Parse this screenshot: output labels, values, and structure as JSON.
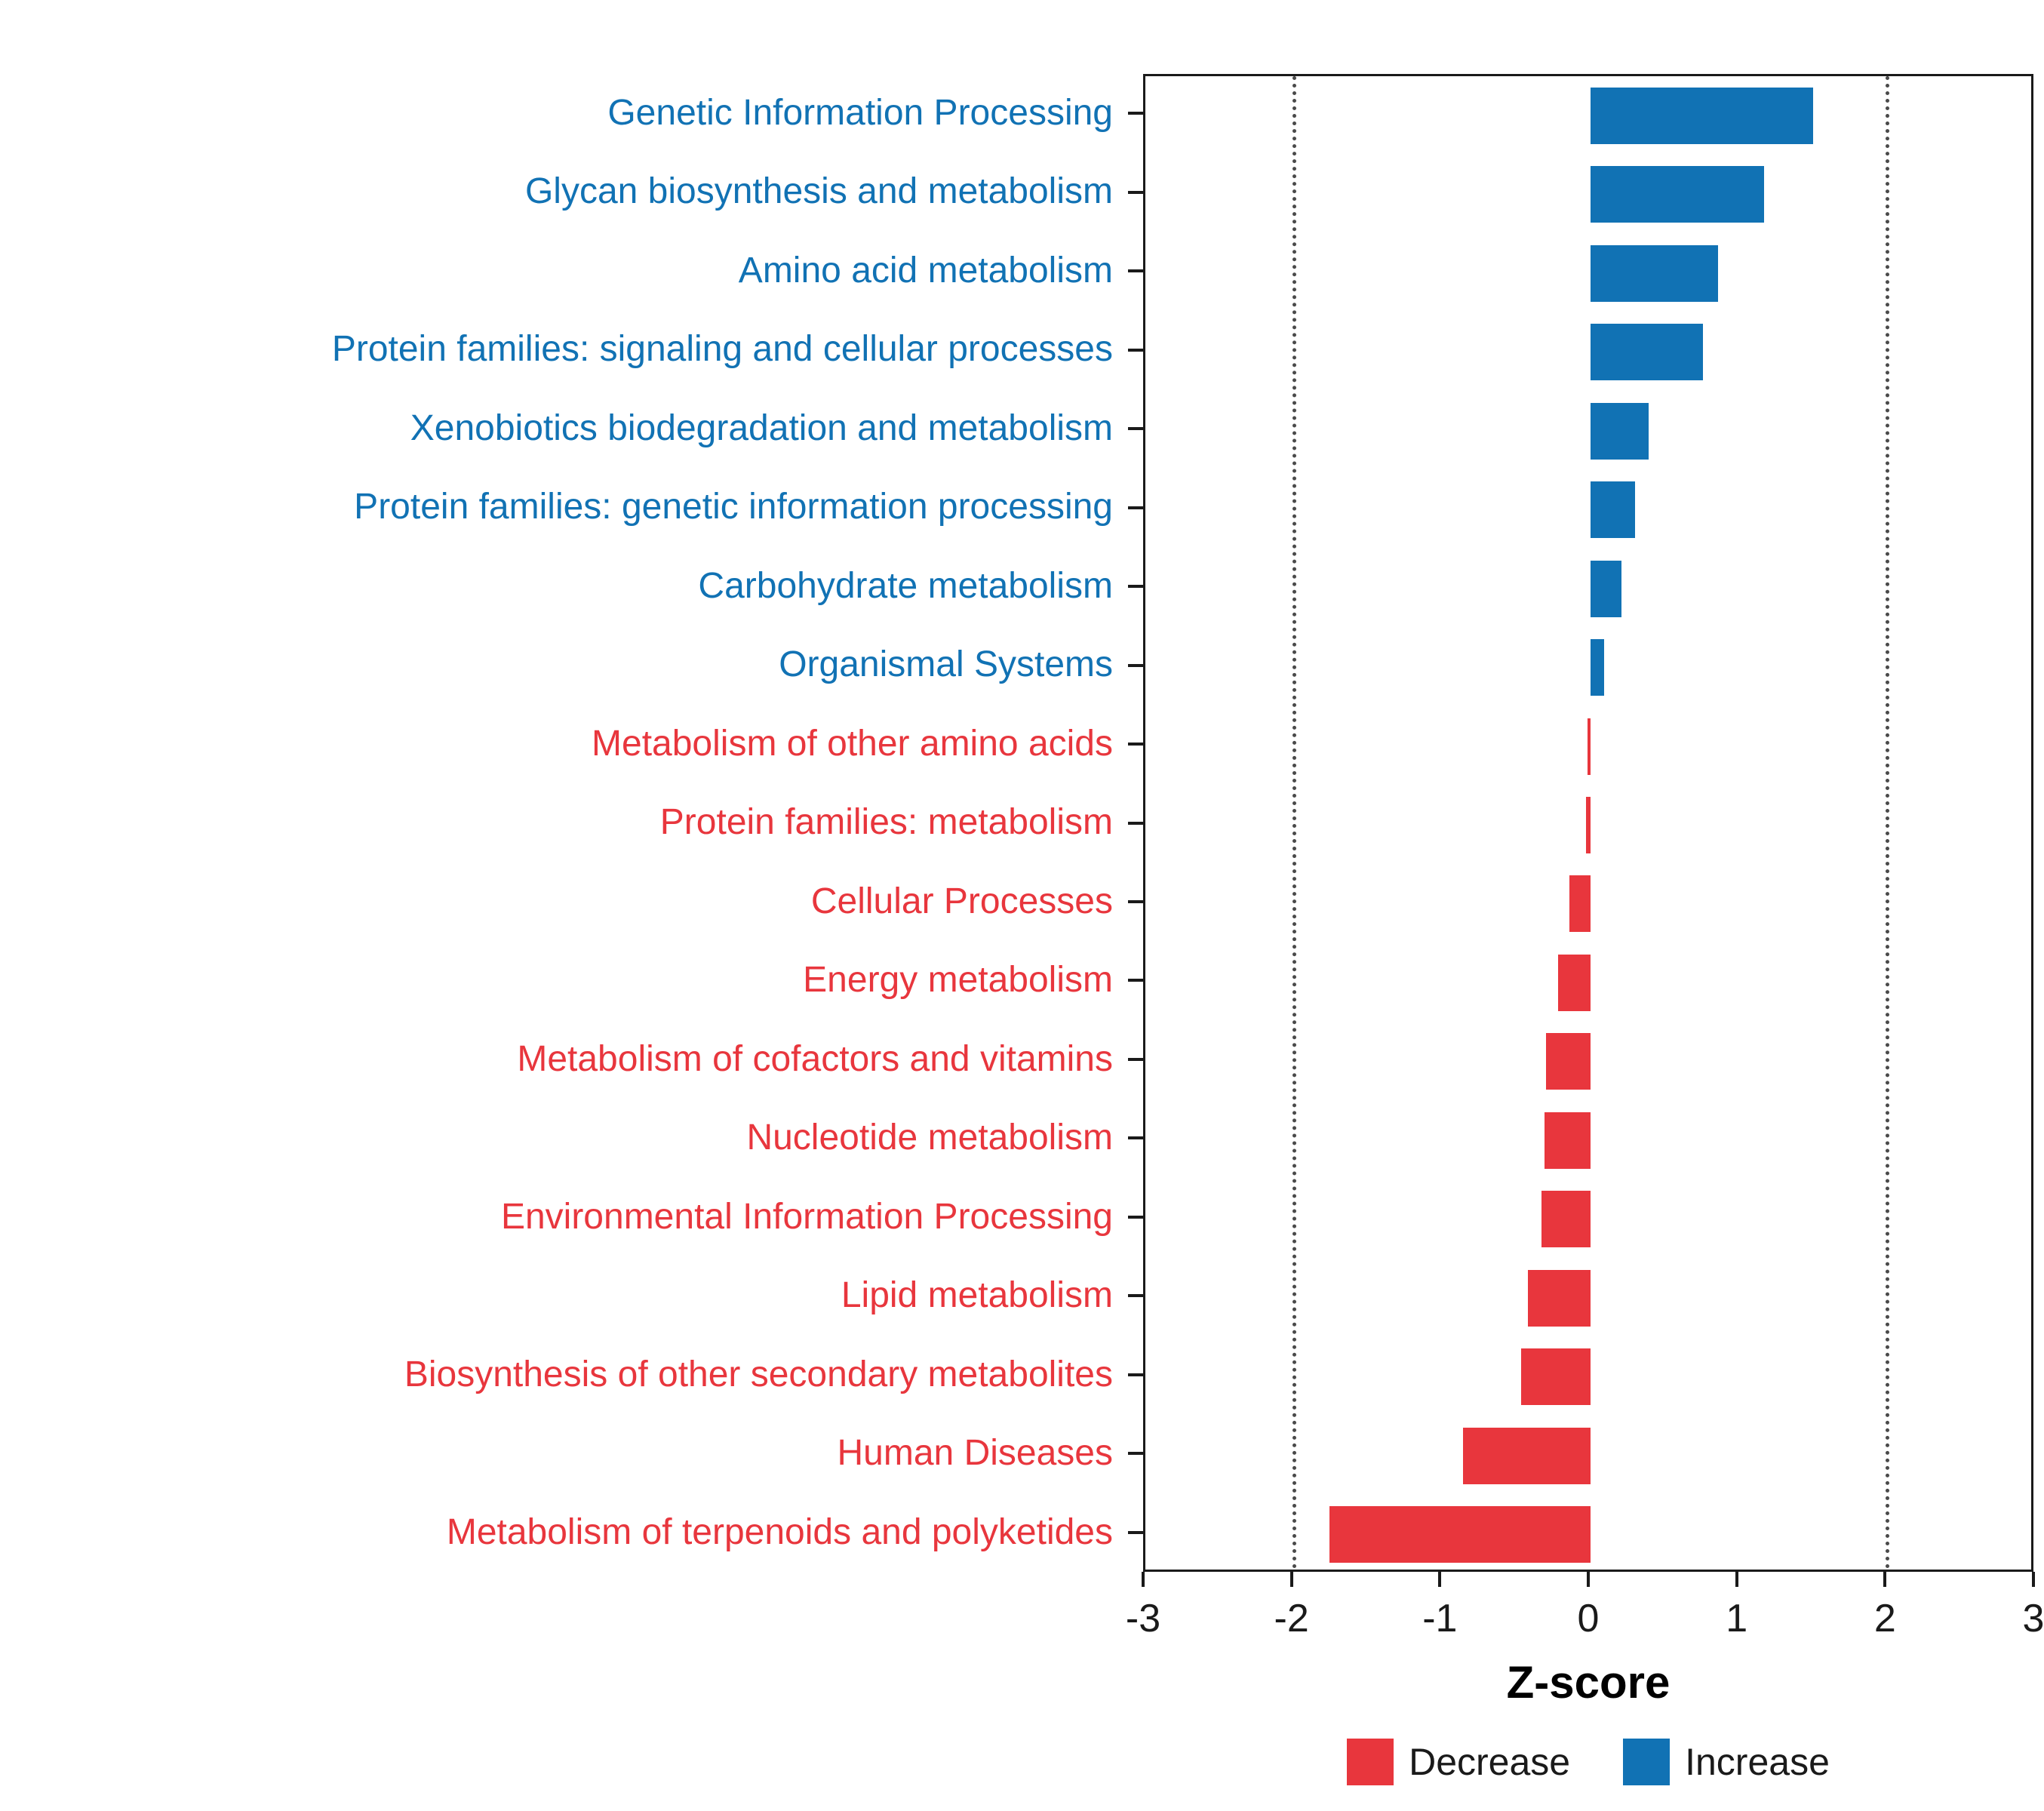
{
  "chart_data": {
    "type": "bar",
    "orientation": "horizontal",
    "title": "",
    "xlabel": "Z-score",
    "ylabel": "",
    "xlim": [
      -3,
      3
    ],
    "x_ticks": [
      -3,
      -2,
      -1,
      0,
      1,
      2,
      3
    ],
    "dotted_gridlines_at": [
      -2,
      2
    ],
    "grid": "dotted-verticals-only",
    "legend_position": "bottom-center",
    "categories": [
      "Genetic Information Processing",
      "Glycan biosynthesis and metabolism",
      "Amino acid metabolism",
      "Protein families: signaling and cellular processes",
      "Xenobiotics biodegradation and metabolism",
      "Protein families: genetic information processing",
      "Carbohydrate metabolism",
      "Organismal Systems",
      "Metabolism of other amino acids",
      "Protein families: metabolism",
      "Cellular Processes",
      "Energy metabolism",
      "Metabolism of cofactors and vitamins",
      "Nucleotide metabolism",
      "Environmental Information Processing",
      "Lipid metabolism",
      "Biosynthesis of other secondary metabolites",
      "Human Diseases",
      "Metabolism of terpenoids and polyketides"
    ],
    "values": [
      1.5,
      1.17,
      0.86,
      0.76,
      0.39,
      0.3,
      0.21,
      0.09,
      -0.02,
      -0.03,
      -0.14,
      -0.22,
      -0.3,
      -0.31,
      -0.33,
      -0.42,
      -0.47,
      -0.86,
      -1.76
    ],
    "colors": {
      "increase": "#1172B4",
      "decrease": "#E8363D",
      "axis_text": "#1a1a1a",
      "panel_border": "#1a1a1a",
      "gridline": "#4a4a4a"
    },
    "legend": [
      {
        "key": "decrease",
        "label": "Decrease",
        "color": "#E8363D"
      },
      {
        "key": "increase",
        "label": "Increase",
        "color": "#1172B4"
      }
    ]
  }
}
